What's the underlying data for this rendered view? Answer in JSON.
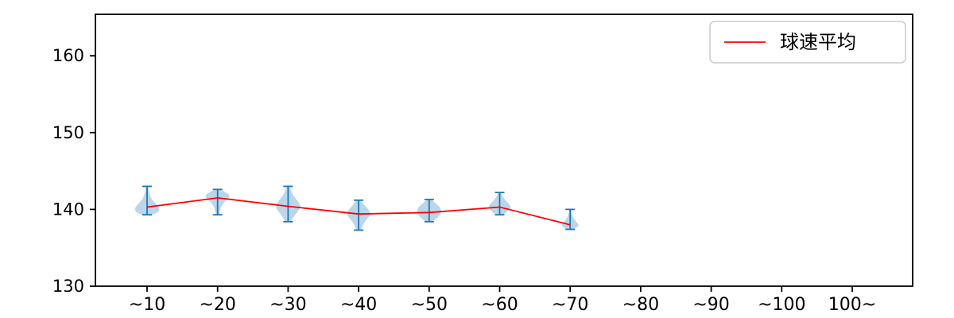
{
  "figure": {
    "background": "#ffffff"
  },
  "chart_data": {
    "type": "violin",
    "title": "",
    "xlabel": "",
    "ylabel": "",
    "categories": [
      "~10",
      "~20",
      "~30",
      "~40",
      "~50",
      "~60",
      "~70",
      "~80",
      "~90",
      "~100",
      "100~"
    ],
    "yticks": [
      130,
      140,
      150,
      160
    ],
    "ylim": [
      130,
      165.4
    ],
    "grid": false,
    "axis_color": "#000000",
    "violin_fill": "#1f77b4",
    "violin_opacity": 0.3,
    "violin_line_color": "#1f77b4",
    "legend": {
      "label": "球速平均",
      "position": "upper right",
      "line_color": "#ff0000"
    },
    "series": [
      {
        "name": "球速平均",
        "type": "line",
        "color": "#ff0000",
        "values": [
          140.3,
          141.5,
          140.4,
          139.4,
          139.6,
          140.3,
          138.0,
          null,
          null,
          null,
          null
        ]
      }
    ],
    "violins": [
      {
        "category": "~10",
        "min": 139.3,
        "max": 143.0,
        "mean": 140.3,
        "width_scale": 1.0,
        "profile": [
          [
            139.3,
            0.35
          ],
          [
            139.6,
            0.85
          ],
          [
            140.0,
            1.0
          ],
          [
            140.6,
            0.8
          ],
          [
            141.2,
            0.4
          ],
          [
            142.0,
            0.18
          ],
          [
            143.0,
            0.1
          ]
        ]
      },
      {
        "category": "~20",
        "min": 139.3,
        "max": 142.6,
        "mean": 141.5,
        "width_scale": 0.95,
        "profile": [
          [
            139.3,
            0.15
          ],
          [
            140.2,
            0.25
          ],
          [
            140.9,
            0.5
          ],
          [
            141.4,
            0.95
          ],
          [
            141.9,
            1.0
          ],
          [
            142.3,
            0.6
          ],
          [
            142.6,
            0.2
          ]
        ]
      },
      {
        "category": "~30",
        "min": 138.4,
        "max": 143.0,
        "mean": 140.4,
        "width_scale": 1.0,
        "profile": [
          [
            138.4,
            0.2
          ],
          [
            139.2,
            0.5
          ],
          [
            139.9,
            0.85
          ],
          [
            140.4,
            1.0
          ],
          [
            141.0,
            0.8
          ],
          [
            141.9,
            0.35
          ],
          [
            143.0,
            0.12
          ]
        ]
      },
      {
        "category": "~40",
        "min": 137.3,
        "max": 141.2,
        "mean": 139.4,
        "width_scale": 0.95,
        "profile": [
          [
            137.3,
            0.2
          ],
          [
            138.3,
            0.45
          ],
          [
            139.0,
            0.85
          ],
          [
            139.5,
            1.0
          ],
          [
            140.0,
            0.8
          ],
          [
            140.7,
            0.4
          ],
          [
            141.2,
            0.2
          ]
        ]
      },
      {
        "category": "~50",
        "min": 138.4,
        "max": 141.3,
        "mean": 139.6,
        "width_scale": 0.95,
        "profile": [
          [
            138.4,
            0.25
          ],
          [
            138.9,
            0.7
          ],
          [
            139.4,
            0.95
          ],
          [
            139.8,
            1.0
          ],
          [
            140.3,
            0.9
          ],
          [
            140.9,
            0.45
          ],
          [
            141.3,
            0.2
          ]
        ]
      },
      {
        "category": "~60",
        "min": 139.3,
        "max": 142.2,
        "mean": 140.3,
        "width_scale": 0.9,
        "profile": [
          [
            139.3,
            0.3
          ],
          [
            139.8,
            0.75
          ],
          [
            140.2,
            1.0
          ],
          [
            140.7,
            0.85
          ],
          [
            141.1,
            0.55
          ],
          [
            141.7,
            0.25
          ],
          [
            142.2,
            0.12
          ]
        ]
      },
      {
        "category": "~70",
        "min": 137.4,
        "max": 140.0,
        "mean": 138.0,
        "width_scale": 0.7,
        "profile": [
          [
            137.4,
            0.25
          ],
          [
            137.7,
            0.8
          ],
          [
            138.0,
            1.0
          ],
          [
            138.4,
            0.65
          ],
          [
            138.9,
            0.35
          ],
          [
            139.4,
            0.18
          ],
          [
            140.0,
            0.1
          ]
        ]
      }
    ]
  }
}
